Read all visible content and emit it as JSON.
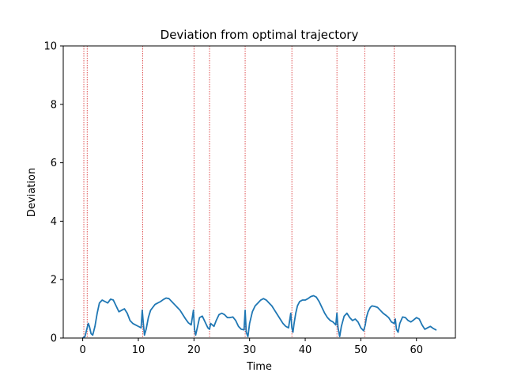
{
  "chart_data": {
    "type": "line",
    "title": "Deviation from optimal trajectory",
    "xlabel": "Time",
    "ylabel": "Deviation",
    "xlim": [
      -3.5,
      67
    ],
    "ylim": [
      0,
      10
    ],
    "xticks": [
      0,
      10,
      20,
      30,
      40,
      50,
      60
    ],
    "yticks": [
      0,
      2,
      4,
      6,
      8,
      10
    ],
    "grid": false,
    "series": [
      {
        "color": "#1f77b4",
        "x": [
          0.0,
          0.4,
          0.8,
          1.0,
          1.2,
          1.5,
          1.8,
          2.2,
          2.6,
          3.0,
          3.5,
          4.0,
          4.5,
          5.0,
          5.5,
          6.0,
          6.5,
          7.0,
          7.5,
          8.0,
          8.5,
          9.0,
          9.5,
          10.0,
          10.5,
          10.7,
          10.9,
          11.1,
          11.4,
          11.8,
          12.2,
          12.6,
          13.0,
          13.5,
          14.0,
          14.5,
          15.0,
          15.5,
          16.0,
          16.5,
          17.0,
          17.5,
          18.0,
          18.5,
          19.0,
          19.5,
          19.9,
          20.1,
          20.3,
          20.6,
          21.0,
          21.5,
          22.0,
          22.5,
          22.8,
          23.0,
          23.3,
          23.6,
          24.0,
          24.5,
          25.0,
          25.5,
          26.0,
          26.5,
          27.0,
          27.5,
          28.0,
          28.5,
          29.0,
          29.2,
          29.4,
          29.7,
          30.0,
          30.5,
          31.0,
          31.5,
          32.0,
          32.5,
          33.0,
          33.5,
          34.0,
          34.5,
          35.0,
          35.5,
          36.0,
          36.5,
          37.0,
          37.4,
          37.6,
          37.8,
          38.0,
          38.3,
          38.6,
          39.0,
          39.5,
          40.0,
          40.5,
          41.0,
          41.5,
          42.0,
          42.5,
          43.0,
          43.5,
          44.0,
          44.5,
          45.0,
          45.5,
          45.7,
          45.9,
          46.2,
          46.5,
          47.0,
          47.5,
          48.0,
          48.5,
          49.0,
          49.5,
          50.0,
          50.5,
          50.8,
          51.0,
          51.3,
          51.7,
          52.0,
          52.5,
          53.0,
          53.5,
          54.0,
          54.5,
          55.0,
          55.5,
          56.0,
          56.2,
          56.4,
          56.7,
          57.0,
          57.5,
          58.0,
          58.5,
          59.0,
          59.5,
          60.0,
          60.5,
          61.0,
          61.5,
          62.0,
          62.5,
          63.0,
          63.5
        ],
        "y": [
          0.0,
          0.05,
          0.35,
          0.5,
          0.4,
          0.15,
          0.1,
          0.4,
          0.85,
          1.2,
          1.3,
          1.25,
          1.2,
          1.33,
          1.3,
          1.1,
          0.9,
          0.95,
          1.0,
          0.85,
          0.6,
          0.5,
          0.45,
          0.4,
          0.35,
          0.95,
          0.5,
          0.1,
          0.3,
          0.7,
          0.95,
          1.05,
          1.15,
          1.2,
          1.25,
          1.32,
          1.37,
          1.35,
          1.25,
          1.15,
          1.05,
          0.95,
          0.8,
          0.65,
          0.52,
          0.45,
          0.95,
          0.3,
          0.1,
          0.35,
          0.7,
          0.75,
          0.55,
          0.35,
          0.3,
          0.5,
          0.45,
          0.4,
          0.6,
          0.8,
          0.85,
          0.8,
          0.7,
          0.7,
          0.72,
          0.6,
          0.4,
          0.3,
          0.28,
          0.95,
          0.2,
          0.05,
          0.5,
          0.9,
          1.1,
          1.2,
          1.3,
          1.35,
          1.3,
          1.2,
          1.1,
          0.95,
          0.8,
          0.65,
          0.5,
          0.4,
          0.35,
          0.85,
          0.35,
          0.2,
          0.5,
          0.85,
          1.1,
          1.25,
          1.3,
          1.3,
          1.35,
          1.42,
          1.45,
          1.4,
          1.25,
          1.05,
          0.85,
          0.7,
          0.6,
          0.55,
          0.45,
          0.85,
          0.35,
          0.05,
          0.4,
          0.75,
          0.85,
          0.7,
          0.6,
          0.65,
          0.55,
          0.35,
          0.25,
          0.45,
          0.7,
          0.9,
          1.05,
          1.1,
          1.08,
          1.05,
          0.95,
          0.85,
          0.78,
          0.7,
          0.55,
          0.5,
          0.65,
          0.3,
          0.2,
          0.5,
          0.72,
          0.7,
          0.6,
          0.55,
          0.62,
          0.7,
          0.65,
          0.45,
          0.3,
          0.35,
          0.4,
          0.33,
          0.28
        ]
      }
    ],
    "vlines": {
      "color": "#d62728",
      "x": [
        0.2,
        0.8,
        10.8,
        20.0,
        22.8,
        29.2,
        37.6,
        45.7,
        50.7,
        56.0
      ]
    }
  }
}
